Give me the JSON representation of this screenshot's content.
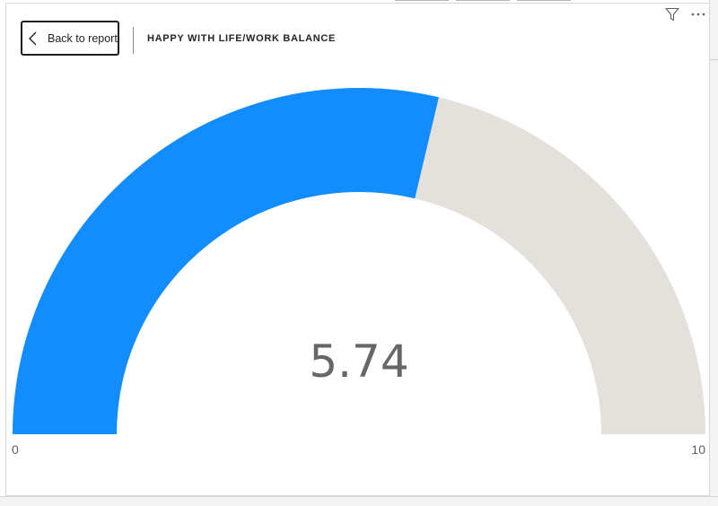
{
  "header": {
    "back_label": "Back to report",
    "title": "HAPPY WITH LIFE/WORK BALANCE"
  },
  "icons": {
    "back": "chevron-left-icon",
    "filter": "filter-icon",
    "more": "more-options-icon"
  },
  "chart_data": {
    "type": "gauge",
    "title": "HAPPY WITH LIFE/WORK BALANCE",
    "value": 5.74,
    "value_label": "5.74",
    "min": 0,
    "max": 10,
    "min_label": "0",
    "max_label": "10"
  },
  "colors": {
    "fill": "#118dff",
    "track": "#e4e0db",
    "value_text": "#666666",
    "button_border": "#1f1f1f"
  }
}
